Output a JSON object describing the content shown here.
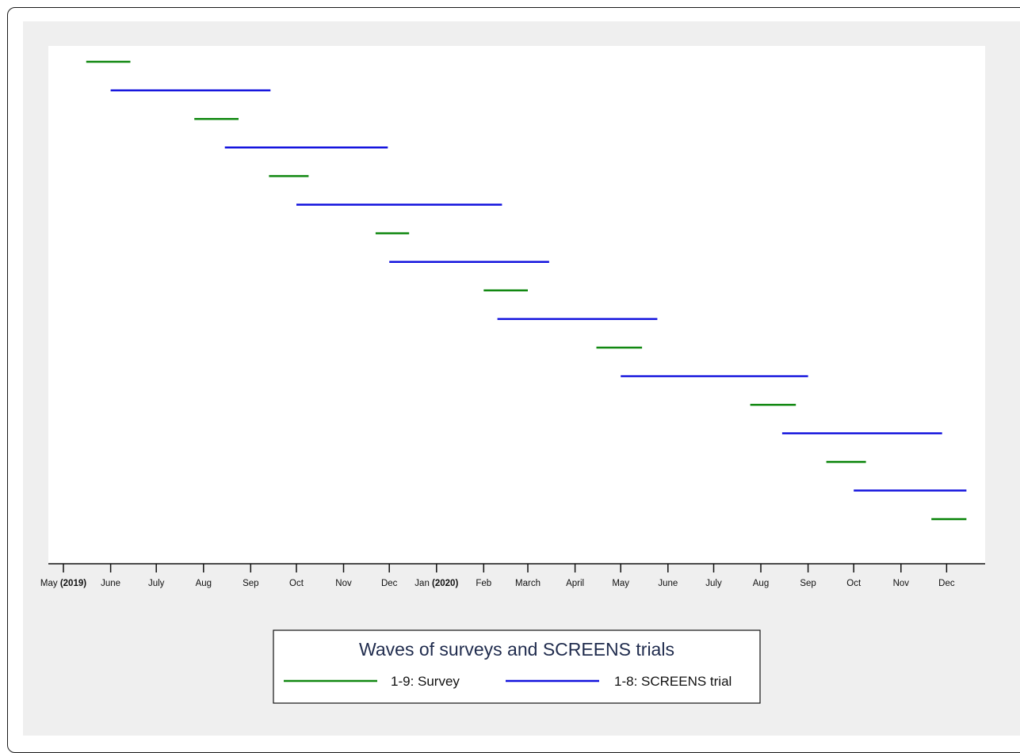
{
  "chart_data": {
    "type": "timeline",
    "xaxis": {
      "start": "2019-05-01",
      "end": "2021-01-01",
      "ticks": [
        {
          "date": "2019-05-01",
          "label": "May",
          "year": "2019"
        },
        {
          "date": "2019-06-01",
          "label": "June"
        },
        {
          "date": "2019-07-01",
          "label": "July"
        },
        {
          "date": "2019-08-01",
          "label": "Aug"
        },
        {
          "date": "2019-09-01",
          "label": "Sep"
        },
        {
          "date": "2019-10-01",
          "label": "Oct"
        },
        {
          "date": "2019-11-01",
          "label": "Nov"
        },
        {
          "date": "2019-12-01",
          "label": "Dec"
        },
        {
          "date": "2020-01-01",
          "label": "Jan",
          "year": "2020"
        },
        {
          "date": "2020-02-01",
          "label": "Feb"
        },
        {
          "date": "2020-03-01",
          "label": "March"
        },
        {
          "date": "2020-04-01",
          "label": "April"
        },
        {
          "date": "2020-05-01",
          "label": "May"
        },
        {
          "date": "2020-06-01",
          "label": "June"
        },
        {
          "date": "2020-07-01",
          "label": "July"
        },
        {
          "date": "2020-08-01",
          "label": "Aug"
        },
        {
          "date": "2020-09-01",
          "label": "Sep"
        },
        {
          "date": "2020-10-01",
          "label": "Oct"
        },
        {
          "date": "2020-11-01",
          "label": "Nov"
        },
        {
          "date": "2020-12-01",
          "label": "Dec"
        }
      ]
    },
    "series": [
      {
        "name": "1-9: Survey",
        "color": "#118811"
      },
      {
        "name": "1-8: SCREENS trial",
        "color": "#1111dd"
      }
    ],
    "intervals": [
      {
        "series": 0,
        "start": "2019-05-16",
        "end": "2019-06-14"
      },
      {
        "series": 1,
        "start": "2019-06-01",
        "end": "2019-09-14"
      },
      {
        "series": 0,
        "start": "2019-07-26",
        "end": "2019-08-24"
      },
      {
        "series": 1,
        "start": "2019-08-15",
        "end": "2019-11-30"
      },
      {
        "series": 0,
        "start": "2019-09-13",
        "end": "2019-10-09"
      },
      {
        "series": 1,
        "start": "2019-10-01",
        "end": "2020-02-13"
      },
      {
        "series": 0,
        "start": "2019-11-22",
        "end": "2019-12-14"
      },
      {
        "series": 1,
        "start": "2019-12-01",
        "end": "2020-03-15"
      },
      {
        "series": 0,
        "start": "2020-02-01",
        "end": "2020-03-01"
      },
      {
        "series": 1,
        "start": "2020-02-10",
        "end": "2020-05-25"
      },
      {
        "series": 0,
        "start": "2020-04-15",
        "end": "2020-05-15"
      },
      {
        "series": 1,
        "start": "2020-05-01",
        "end": "2020-09-01"
      },
      {
        "series": 0,
        "start": "2020-07-25",
        "end": "2020-08-24"
      },
      {
        "series": 1,
        "start": "2020-08-15",
        "end": "2020-11-28"
      },
      {
        "series": 0,
        "start": "2020-09-13",
        "end": "2020-10-09"
      },
      {
        "series": 1,
        "start": "2020-10-01",
        "end": "2020-12-14"
      },
      {
        "series": 0,
        "start": "2020-11-21",
        "end": "2020-12-14"
      }
    ],
    "legend": {
      "title": "Waves of surveys and SCREENS trials",
      "position": "bottom"
    }
  }
}
